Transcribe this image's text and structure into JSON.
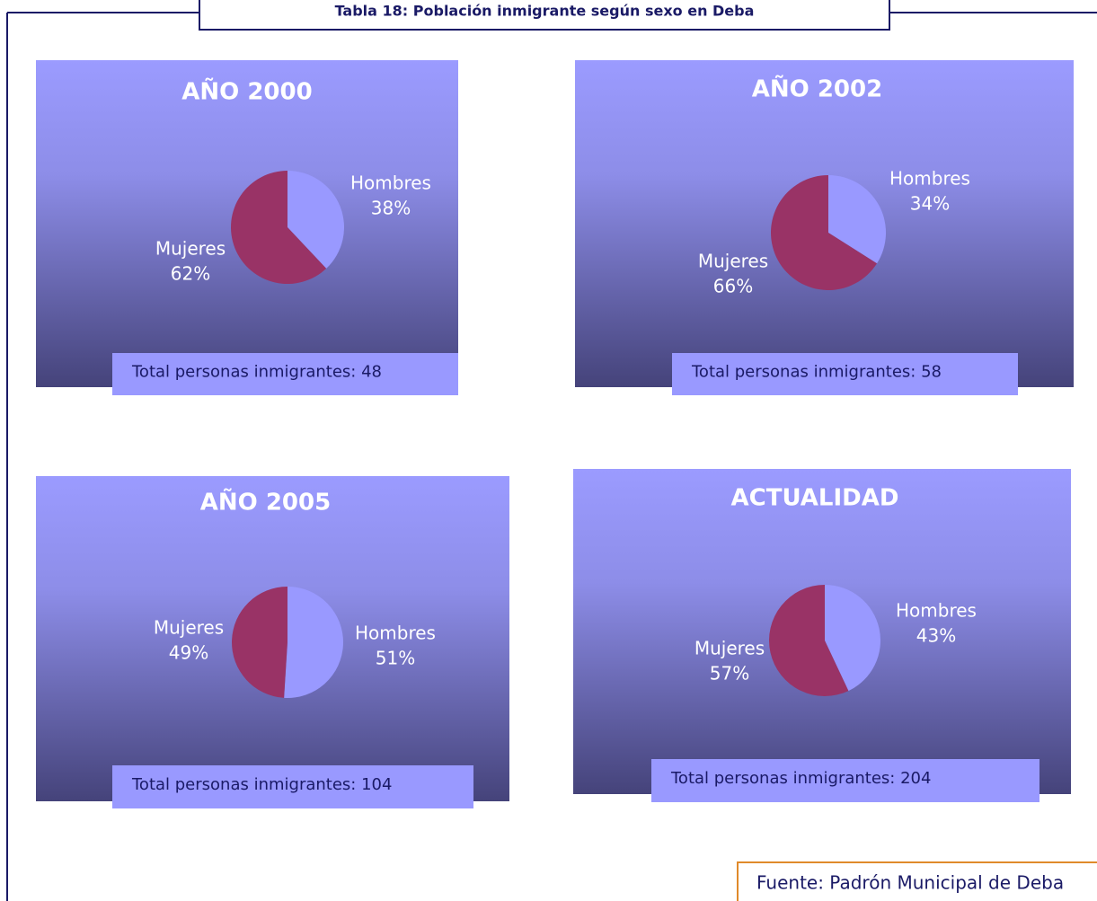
{
  "title": "Tabla 18: Población inmigrante según sexo en Deba",
  "source": "Fuente: Padrón Municipal de Deba",
  "chart_data": [
    {
      "type": "pie",
      "title": "AÑO 2000",
      "categories": [
        "Hombres",
        "Mujeres"
      ],
      "values": [
        38,
        62
      ],
      "value_labels": [
        "38%",
        "62%"
      ],
      "colors": [
        "#9999ff",
        "#993366"
      ],
      "note": "Total personas inmigrantes: 48"
    },
    {
      "type": "pie",
      "title": "AÑO 2002",
      "categories": [
        "Hombres",
        "Mujeres"
      ],
      "values": [
        34,
        66
      ],
      "value_labels": [
        "34%",
        "66%"
      ],
      "colors": [
        "#9999ff",
        "#993366"
      ],
      "note": "Total personas inmigrantes: 58"
    },
    {
      "type": "pie",
      "title": "AÑO 2005",
      "categories": [
        "Hombres",
        "Mujeres"
      ],
      "values": [
        51,
        49
      ],
      "value_labels": [
        "51%",
        "49%"
      ],
      "colors": [
        "#9999ff",
        "#993366"
      ],
      "note": "Total personas inmigrantes: 104"
    },
    {
      "type": "pie",
      "title": "ACTUALIDAD",
      "categories": [
        "Hombres",
        "Mujeres"
      ],
      "values": [
        43,
        57
      ],
      "value_labels": [
        "43%",
        "57%"
      ],
      "colors": [
        "#9999ff",
        "#993366"
      ],
      "note": "Total personas inmigrantes: 204"
    }
  ]
}
